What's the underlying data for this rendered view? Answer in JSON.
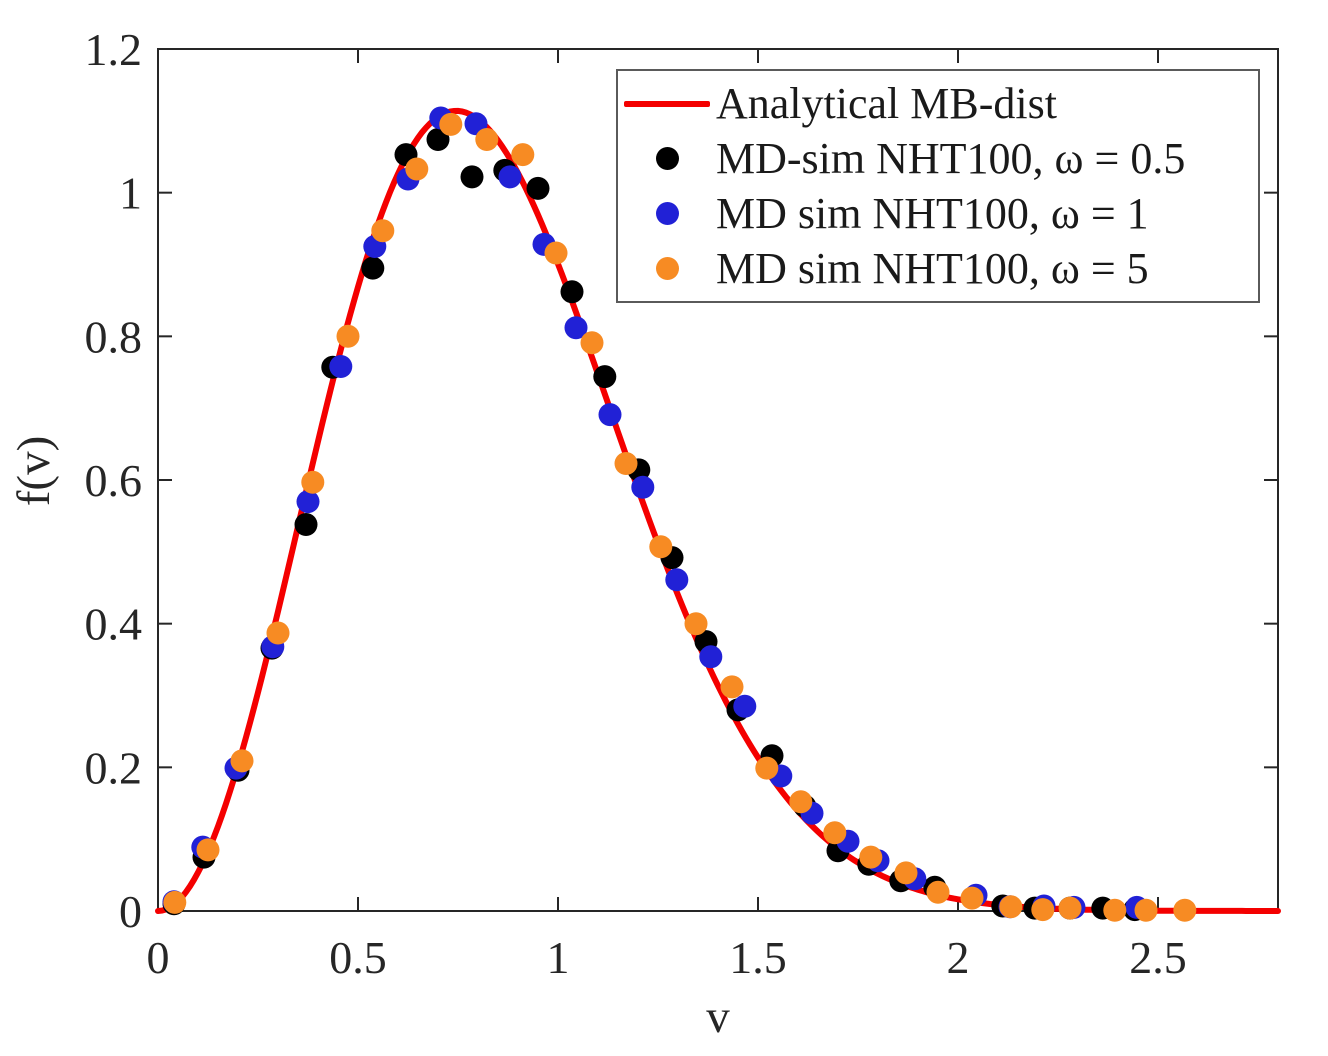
{
  "chart_data": {
    "type": "scatter",
    "title": "",
    "xlabel": "v",
    "ylabel": "f(v)",
    "xlim": [
      0,
      2.8
    ],
    "ylim": [
      0,
      1.2
    ],
    "grid": false,
    "legend_position": "top-right",
    "axis_color": "#262626",
    "x_ticks": {
      "values": [
        0,
        0.5,
        1,
        1.5,
        2,
        2.5
      ],
      "labels": [
        "0",
        "0.5",
        "1",
        "1.5",
        "2",
        "2.5"
      ]
    },
    "y_ticks": {
      "values": [
        0,
        0.2,
        0.4,
        0.6,
        0.8,
        1,
        1.2
      ],
      "labels": [
        "0",
        "0.2",
        "0.4",
        "0.6",
        "0.8",
        "1",
        "1.2"
      ]
    },
    "curve": {
      "name": "Analytical MB-dist",
      "color": "#f40000",
      "formula": "f(v) = A·v²·exp(−B·v²)",
      "A": 5.45,
      "B": 1.8,
      "v_min": 0,
      "v_max": 2.8
    },
    "series": [
      {
        "name": "MD-sim NHT100, ω = 0.5",
        "color": "#000000",
        "points": [
          [
            0.04,
            0.01
          ],
          [
            0.115,
            0.075
          ],
          [
            0.2,
            0.196
          ],
          [
            0.285,
            0.366
          ],
          [
            0.37,
            0.538
          ],
          [
            0.437,
            0.757
          ],
          [
            0.537,
            0.895
          ],
          [
            0.62,
            1.053
          ],
          [
            0.7,
            1.074
          ],
          [
            0.785,
            1.022
          ],
          [
            0.867,
            1.031
          ],
          [
            0.95,
            1.006
          ],
          [
            1.035,
            0.862
          ],
          [
            1.117,
            0.744
          ],
          [
            1.202,
            0.614
          ],
          [
            1.285,
            0.492
          ],
          [
            1.37,
            0.375
          ],
          [
            1.45,
            0.28
          ],
          [
            1.535,
            0.216
          ],
          [
            1.617,
            0.146
          ],
          [
            1.7,
            0.084
          ],
          [
            1.777,
            0.065
          ],
          [
            1.857,
            0.042
          ],
          [
            1.942,
            0.033
          ],
          [
            2.112,
            0.007
          ],
          [
            2.192,
            0.004
          ],
          [
            2.28,
            0.004
          ],
          [
            2.362,
            0.004
          ],
          [
            2.442,
            0.002
          ]
        ]
      },
      {
        "name": "MD sim NHT100, ω = 1",
        "color": "#2121d6",
        "points": [
          [
            0.04,
            0.013
          ],
          [
            0.112,
            0.089
          ],
          [
            0.195,
            0.199
          ],
          [
            0.287,
            0.368
          ],
          [
            0.375,
            0.57
          ],
          [
            0.457,
            0.758
          ],
          [
            0.542,
            0.925
          ],
          [
            0.625,
            1.019
          ],
          [
            0.707,
            1.104
          ],
          [
            0.795,
            1.096
          ],
          [
            0.88,
            1.022
          ],
          [
            0.965,
            0.928
          ],
          [
            1.045,
            0.812
          ],
          [
            1.13,
            0.691
          ],
          [
            1.212,
            0.59
          ],
          [
            1.297,
            0.461
          ],
          [
            1.382,
            0.354
          ],
          [
            1.467,
            0.285
          ],
          [
            1.557,
            0.188
          ],
          [
            1.635,
            0.136
          ],
          [
            1.725,
            0.097
          ],
          [
            1.8,
            0.07
          ],
          [
            1.892,
            0.045
          ],
          [
            2.045,
            0.022
          ],
          [
            2.13,
            0.006
          ],
          [
            2.215,
            0.007
          ],
          [
            2.29,
            0.005
          ],
          [
            2.447,
            0.005
          ]
        ]
      },
      {
        "name": "MD sim NHT100, ω = 5",
        "color": "#f78b23",
        "points": [
          [
            0.042,
            0.012
          ],
          [
            0.125,
            0.085
          ],
          [
            0.21,
            0.209
          ],
          [
            0.3,
            0.387
          ],
          [
            0.387,
            0.597
          ],
          [
            0.475,
            0.8
          ],
          [
            0.562,
            0.947
          ],
          [
            0.647,
            1.033
          ],
          [
            0.732,
            1.095
          ],
          [
            0.822,
            1.074
          ],
          [
            0.912,
            1.053
          ],
          [
            0.995,
            0.916
          ],
          [
            1.085,
            0.791
          ],
          [
            1.17,
            0.623
          ],
          [
            1.257,
            0.507
          ],
          [
            1.345,
            0.4
          ],
          [
            1.435,
            0.312
          ],
          [
            1.522,
            0.199
          ],
          [
            1.607,
            0.152
          ],
          [
            1.692,
            0.109
          ],
          [
            1.782,
            0.075
          ],
          [
            1.87,
            0.053
          ],
          [
            1.95,
            0.026
          ],
          [
            2.035,
            0.018
          ],
          [
            2.132,
            0.006
          ],
          [
            2.212,
            0.002
          ],
          [
            2.28,
            0.004
          ],
          [
            2.392,
            0.001
          ],
          [
            2.47,
            0.001
          ],
          [
            2.567,
            0.001
          ]
        ]
      }
    ]
  }
}
